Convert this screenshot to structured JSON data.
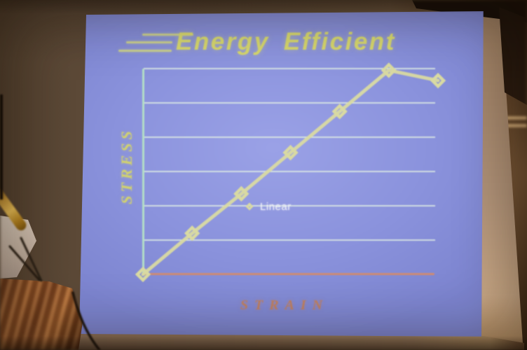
{
  "scene": {
    "type": "photograph of a projected presentation slide in a dim room",
    "room": {
      "wall_color": "#63503c",
      "screen_border_color": "#b2947a",
      "podium_wood_color": "#8a4f26",
      "objects": [
        "wooden-podium",
        "white-stand",
        "gold-rod",
        "cables"
      ]
    }
  },
  "slide": {
    "background_color": "#8990dc",
    "title": "Energy Efficient",
    "title_color": "#d6d76e",
    "title_decoration": "three horizontal speed lines left of title"
  },
  "chart_data": {
    "type": "line",
    "title": "Energy Efficient",
    "xlabel": "STRAIN",
    "ylabel": "STRESS",
    "x": [
      0,
      1,
      2,
      3,
      4,
      5,
      6
    ],
    "xlim": [
      0,
      6
    ],
    "ylim": [
      0,
      6
    ],
    "series": [
      {
        "name": "Linear",
        "marker": "diamond",
        "color": "#d9daa2",
        "values": [
          0,
          1.2,
          2.35,
          3.55,
          4.75,
          5.95,
          5.65
        ]
      }
    ],
    "grid": {
      "horizontal_gridlines": 6,
      "color": "#dfeade"
    },
    "axes": {
      "x_axis_color": "#cd8b74",
      "y_axis_color": "#b3dec6",
      "xlabel_color": "#bf8263",
      "ylabel_color": "#d0d170",
      "tick_labels_visible": false
    },
    "legend": {
      "label": "Linear",
      "position": "center-of-plot",
      "text_color": "#eef0f8"
    }
  }
}
